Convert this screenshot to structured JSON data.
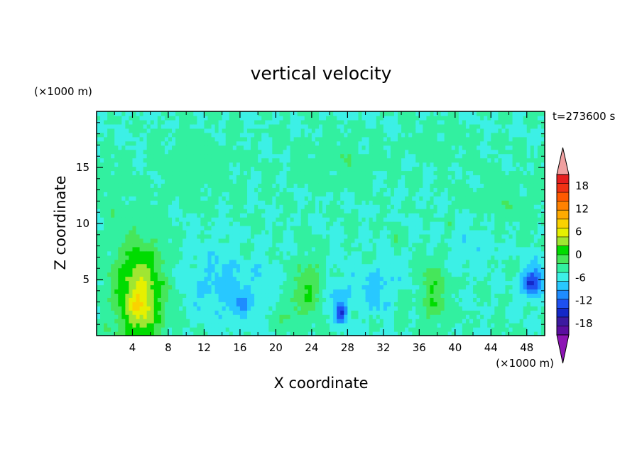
{
  "chart_data": {
    "type": "heatmap",
    "title": "vertical velocity",
    "xlabel": "X coordinate",
    "ylabel": "Z coordinate",
    "x_unit": "(×1000 m)",
    "y_unit": "(×1000 m)",
    "time_label": "t=273600 s",
    "xlim": [
      0,
      50
    ],
    "ylim": [
      0,
      20
    ],
    "x_ticks": [
      4,
      8,
      12,
      16,
      20,
      24,
      28,
      32,
      36,
      40,
      44,
      48
    ],
    "y_ticks": [
      5,
      10,
      15
    ],
    "colorbar": {
      "min": -21,
      "max": 21,
      "step": 3,
      "tick_values": [
        18,
        12,
        6,
        0,
        -6,
        -12,
        -18
      ],
      "tick_labels": [
        "18",
        "12",
        "6",
        "0",
        "-6",
        "-12",
        "-18"
      ],
      "colors": [
        "#5b0ea0",
        "#3c1aa0",
        "#1428c8",
        "#1e50f0",
        "#1e8cff",
        "#28c8ff",
        "#3cf0e6",
        "#32f0a0",
        "#46e65a",
        "#00dc00",
        "#a0e632",
        "#e6f000",
        "#fad200",
        "#ffaa00",
        "#ff8200",
        "#ff5a00",
        "#f03214",
        "#e61e1e"
      ],
      "over_color": "#f0a0a0",
      "under_color": "#8c14b4"
    },
    "background_value": 0,
    "features": [
      {
        "x": 4.8,
        "z": 3.6,
        "peak": 13,
        "sx": 1.9,
        "sz": 3.3
      },
      {
        "x": 5.0,
        "z": 2.8,
        "peak": 3,
        "sx": 0.7,
        "sz": 0.9
      },
      {
        "x": 14.5,
        "z": 4.5,
        "peak": -4,
        "sx": 3.2,
        "sz": 2.4
      },
      {
        "x": 16.0,
        "z": 2.7,
        "peak": -5,
        "sx": 0.8,
        "sz": 0.5
      },
      {
        "x": 16.6,
        "z": 7.4,
        "peak": 3.5,
        "sx": 0.4,
        "sz": 0.8
      },
      {
        "x": 23.5,
        "z": 4.3,
        "peak": 6,
        "sx": 1.2,
        "sz": 1.7
      },
      {
        "x": 21.5,
        "z": 2.0,
        "peak": 3,
        "sx": 1.2,
        "sz": 1.0
      },
      {
        "x": 27.3,
        "z": 2.0,
        "peak": -10,
        "sx": 0.4,
        "sz": 0.5
      },
      {
        "x": 27.0,
        "z": 3.2,
        "peak": -4,
        "sx": 0.9,
        "sz": 1.3
      },
      {
        "x": 31.5,
        "z": 4.2,
        "peak": -4,
        "sx": 2.3,
        "sz": 1.6
      },
      {
        "x": 37.6,
        "z": 3.8,
        "peak": 6,
        "sx": 1.1,
        "sz": 2.0
      },
      {
        "x": 34.0,
        "z": 3.2,
        "peak": 2.5,
        "sx": 0.7,
        "sz": 1.4
      },
      {
        "x": 48.4,
        "z": 4.7,
        "peak": -13,
        "sx": 0.7,
        "sz": 0.8
      },
      {
        "x": 49.3,
        "z": 5.8,
        "peak": -3.5,
        "sx": 0.6,
        "sz": 1.5
      },
      {
        "x": 39.4,
        "z": 10.0,
        "peak": 3.5,
        "sx": 0.4,
        "sz": 0.8
      },
      {
        "x": 33.4,
        "z": 8.7,
        "peak": 3.5,
        "sx": 0.3,
        "sz": 0.5
      },
      {
        "x": 42.0,
        "z": 8.8,
        "peak": -2,
        "sx": 2.8,
        "sz": 1.8
      },
      {
        "x": 11.0,
        "z": 15.0,
        "peak": 2,
        "sx": 3.0,
        "sz": 2.0
      },
      {
        "x": 27.0,
        "z": 15.5,
        "peak": 2,
        "sx": 3.5,
        "sz": 1.6
      },
      {
        "x": 45.5,
        "z": 11.5,
        "peak": 2,
        "sx": 3.0,
        "sz": 2.0
      },
      {
        "x": 38.0,
        "z": 17.0,
        "peak": 1.5,
        "sx": 2.0,
        "sz": 1.5
      },
      {
        "x": 2.0,
        "z": 13.0,
        "peak": 1.7,
        "sx": 1.5,
        "sz": 2.0
      }
    ]
  }
}
